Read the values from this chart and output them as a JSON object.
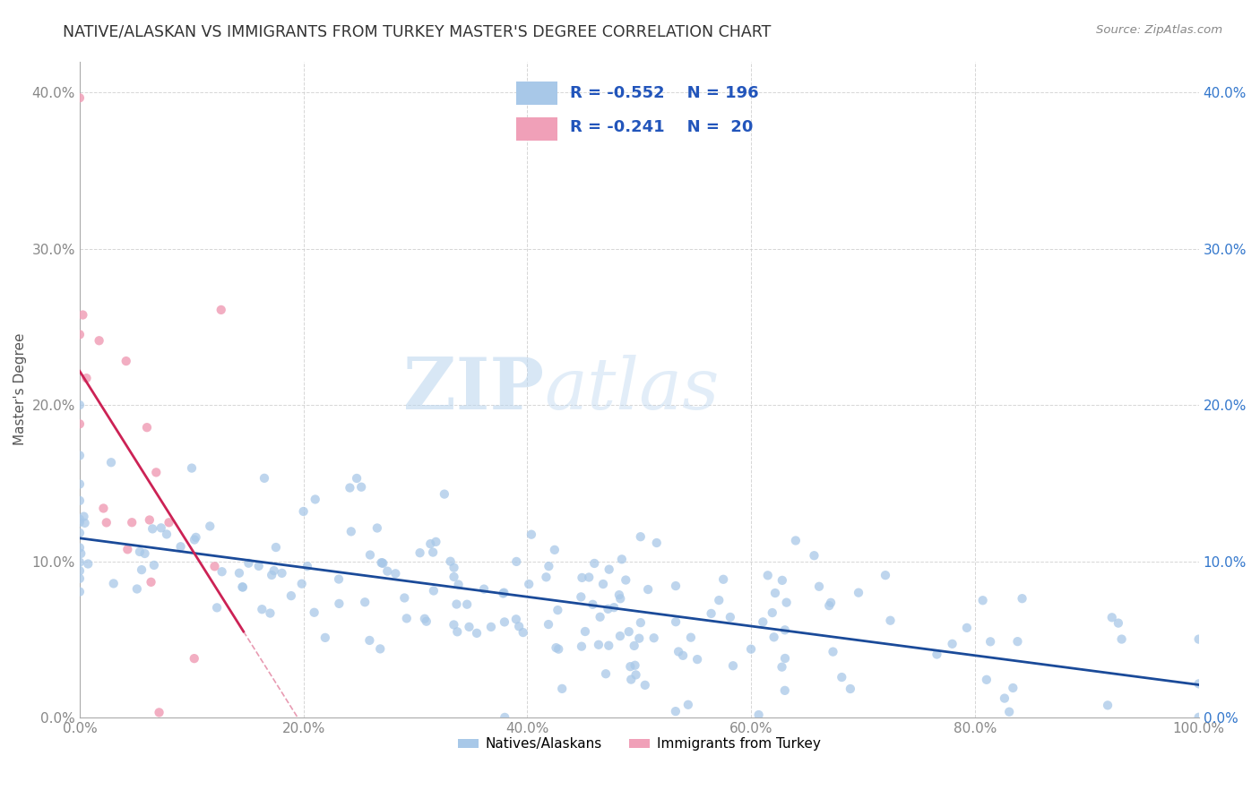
{
  "title": "NATIVE/ALASKAN VS IMMIGRANTS FROM TURKEY MASTER'S DEGREE CORRELATION CHART",
  "source": "Source: ZipAtlas.com",
  "ylabel": "Master's Degree",
  "xlim": [
    0.0,
    1.0
  ],
  "ylim": [
    0.0,
    0.42
  ],
  "xticks": [
    0.0,
    0.2,
    0.4,
    0.6,
    0.8,
    1.0
  ],
  "xticklabels": [
    "0.0%",
    "20.0%",
    "40.0%",
    "60.0%",
    "80.0%",
    "100.0%"
  ],
  "yticks": [
    0.0,
    0.1,
    0.2,
    0.3,
    0.4
  ],
  "yticklabels": [
    "0.0%",
    "10.0%",
    "20.0%",
    "30.0%",
    "40.0%"
  ],
  "blue_R": -0.552,
  "blue_N": 196,
  "pink_R": -0.241,
  "pink_N": 20,
  "blue_color": "#a8c8e8",
  "pink_color": "#f0a0b8",
  "blue_line_color": "#1a4a99",
  "pink_line_color": "#cc2255",
  "watermark_zip": "ZIP",
  "watermark_atlas": "atlas",
  "background_color": "#ffffff",
  "legend_label_blue": "Natives/Alaskans",
  "legend_label_pink": "Immigrants from Turkey"
}
